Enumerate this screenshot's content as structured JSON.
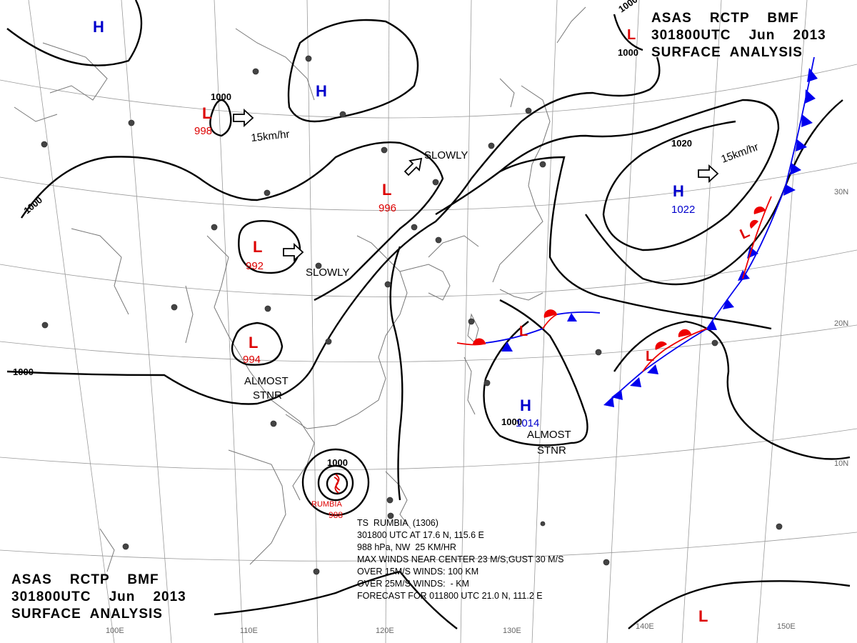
{
  "header": {
    "line1": "ASAS    RCTP    BMF",
    "line2": "301800UTC    Jun    2013",
    "line3": "SURFACE  ANALYSIS"
  },
  "pressure_systems": [
    {
      "type": "H",
      "value": "",
      "color": "#0000cc"
    },
    {
      "type": "H",
      "value": "",
      "color": "#0000cc"
    },
    {
      "type": "L",
      "value": "998",
      "color": "#dd0000"
    },
    {
      "type": "L",
      "value": "996",
      "color": "#dd0000"
    },
    {
      "type": "L",
      "value": "992",
      "color": "#dd0000"
    },
    {
      "type": "L",
      "value": "994",
      "color": "#dd0000"
    },
    {
      "type": "H",
      "value": "1022",
      "color": "#0000cc"
    },
    {
      "type": "H",
      "value": "1014",
      "color": "#0000cc"
    },
    {
      "type": "L",
      "value": "",
      "color": "#dd0000"
    },
    {
      "type": "L",
      "value": "",
      "color": "#dd0000"
    },
    {
      "type": "L",
      "value": "",
      "color": "#dd0000"
    },
    {
      "type": "L",
      "value": "",
      "color": "#dd0000"
    },
    {
      "type": "L",
      "value": "",
      "color": "#dd0000"
    }
  ],
  "movement_labels": [
    "15km/hr",
    "SLOWLY",
    "SLOWLY",
    "15km/hr",
    "ALMOST",
    "STNR",
    "ALMOST",
    "STNR"
  ],
  "isobar_labels": [
    "1000",
    "1000",
    "1000",
    "1000",
    "1020",
    "1000",
    "1000",
    "1000"
  ],
  "latitude_labels": [
    "30N",
    "20N",
    "10N"
  ],
  "longitude_labels": [
    "100E",
    "110E",
    "120E",
    "130E",
    "140E",
    "150E"
  ],
  "typhoon": {
    "name": "RUMBIA",
    "pressure": "988",
    "info_lines": [
      "TS  RUMBIA  (1306)",
      "301800 UTC AT 17.6 N, 115.6 E",
      "988 hPa, NW  25 KM/HR",
      "MAX WINDS NEAR CENTER 23 M/S,GUST 30 M/S",
      "OVER 15M/S WINDS: 100 KM",
      "OVER 25M/S WINDS:  - KM",
      "FORECAST FOR 011800 UTC 21.0 N, 111.2 E"
    ]
  },
  "colors": {
    "high": "#0000cc",
    "low": "#dd0000",
    "cold_front": "#0000ee",
    "warm_front": "#ee0000",
    "isobar": "#000000",
    "grid": "#888888",
    "coast": "#777777"
  }
}
